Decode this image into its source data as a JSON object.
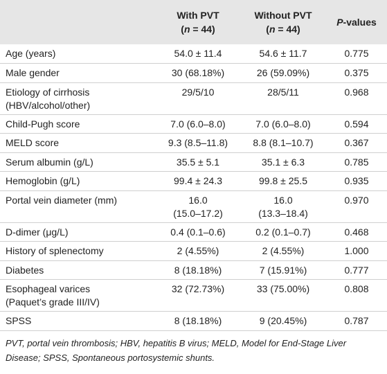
{
  "table": {
    "header": {
      "with": {
        "line1": "With PVT",
        "line2": [
          "(",
          "n",
          " = 44)"
        ]
      },
      "without": {
        "line1": "Without PVT",
        "line2": [
          "(",
          "n",
          " = 44)"
        ]
      },
      "p": [
        "P",
        "-values"
      ]
    },
    "rows": [
      {
        "label": [
          "Age (years)"
        ],
        "with": [
          "54.0 ± 11.4"
        ],
        "without": [
          "54.6 ± 11.7"
        ],
        "p": "0.775"
      },
      {
        "label": [
          "Male gender"
        ],
        "with": [
          "30 (68.18%)"
        ],
        "without": [
          "26 (59.09%)"
        ],
        "p": "0.375"
      },
      {
        "label": [
          "Etiology of cirrhosis",
          "(HBV/alcohol/other)"
        ],
        "with": [
          "29/5/10"
        ],
        "without": [
          "28/5/11"
        ],
        "p": "0.968"
      },
      {
        "label": [
          "Child-Pugh score"
        ],
        "with": [
          "7.0 (6.0–8.0)"
        ],
        "without": [
          "7.0 (6.0–8.0)"
        ],
        "p": "0.594"
      },
      {
        "label": [
          "MELD score"
        ],
        "with": [
          "9.3 (8.5–11.8)"
        ],
        "without": [
          "8.8 (8.1–10.7)"
        ],
        "p": "0.367"
      },
      {
        "label": [
          "Serum albumin (g/L)"
        ],
        "with": [
          "35.5 ± 5.1"
        ],
        "without": [
          "35.1 ± 6.3"
        ],
        "p": "0.785"
      },
      {
        "label": [
          "Hemoglobin (g/L)"
        ],
        "with": [
          "99.4 ± 24.3"
        ],
        "without": [
          "99.8 ± 25.5"
        ],
        "p": "0.935"
      },
      {
        "label": [
          "Portal vein diameter (mm)"
        ],
        "with": [
          "16.0",
          "(15.0–17.2)"
        ],
        "without": [
          "16.0",
          "(13.3–18.4)"
        ],
        "p": "0.970"
      },
      {
        "label": [
          "D-dimer (μg/L)"
        ],
        "with": [
          "0.4 (0.1–0.6)"
        ],
        "without": [
          "0.2 (0.1–0.7)"
        ],
        "p": "0.468"
      },
      {
        "label": [
          "History of splenectomy"
        ],
        "with": [
          "2 (4.55%)"
        ],
        "without": [
          "2 (4.55%)"
        ],
        "p": "1.000"
      },
      {
        "label": [
          "Diabetes"
        ],
        "with": [
          "8 (18.18%)"
        ],
        "without": [
          "7 (15.91%)"
        ],
        "p": "0.777"
      },
      {
        "label": [
          "Esophageal varices",
          "(Paquet’s grade III/IV)"
        ],
        "with": [
          "32 (72.73%)"
        ],
        "without": [
          "33 (75.00%)"
        ],
        "p": "0.808"
      },
      {
        "label": [
          "SPSS"
        ],
        "with": [
          "8 (18.18%)"
        ],
        "without": [
          "9 (20.45%)"
        ],
        "p": "0.787"
      }
    ],
    "footnote": "PVT, portal vein thrombosis; HBV, hepatitis B virus; MELD, Model for End-Stage Liver Disease; SPSS, Spontaneous portosystemic shunts."
  }
}
